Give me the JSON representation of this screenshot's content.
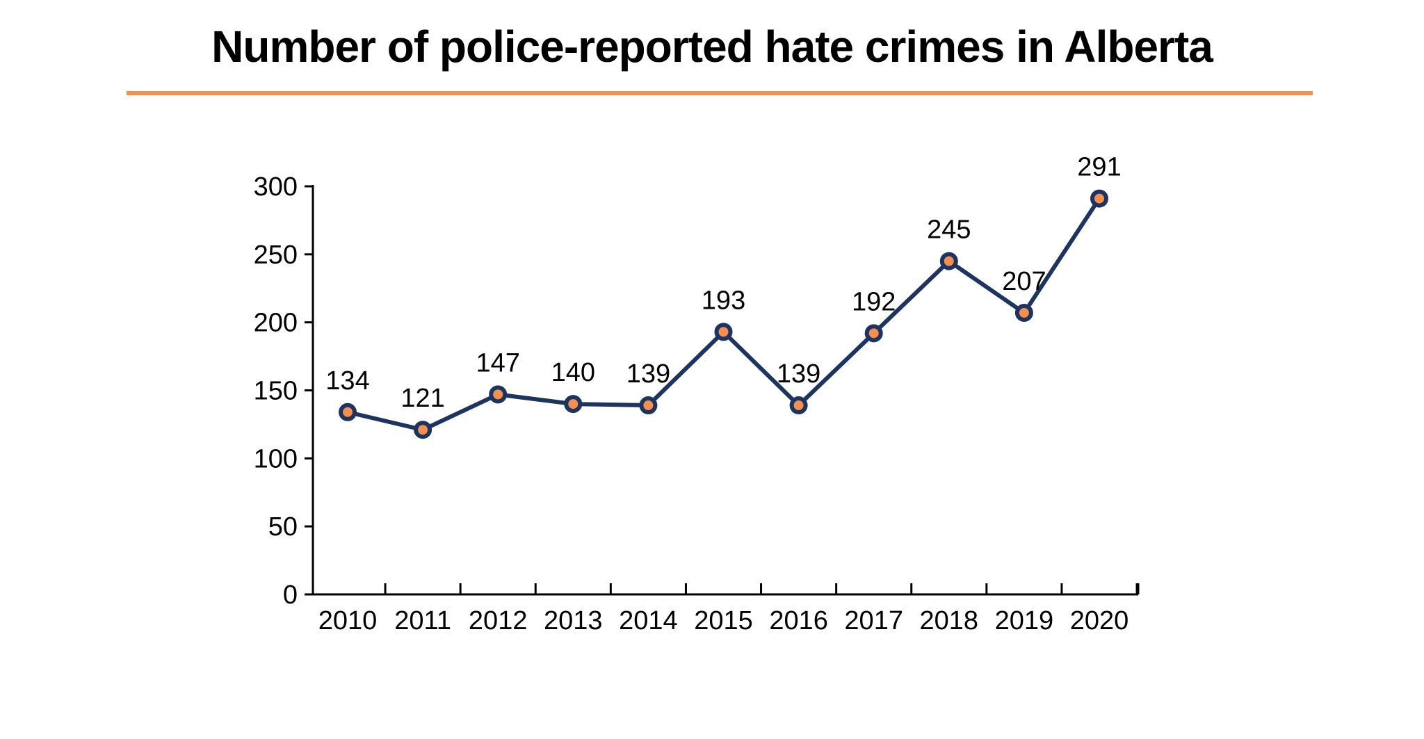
{
  "colors": {
    "accent": "#F3904F",
    "line": "#1D3461",
    "text": "#000000",
    "background": "#FFFFFF"
  },
  "chart_data": {
    "type": "line",
    "title": "Number of police-reported hate crimes in Alberta",
    "xlabel": "",
    "ylabel": "",
    "categories": [
      "2010",
      "2011",
      "2012",
      "2013",
      "2014",
      "2015",
      "2016",
      "2017",
      "2018",
      "2019",
      "2020"
    ],
    "series": [
      {
        "values": [
          134,
          121,
          147,
          140,
          139,
          193,
          139,
          192,
          245,
          207,
          291
        ]
      }
    ],
    "data_labels": [
      "134",
      "121",
      "147",
      "140",
      "139",
      "193",
      "139",
      "192",
      "245",
      "207",
      "291"
    ],
    "ylim": [
      0,
      300
    ],
    "yticks": [
      0,
      50,
      100,
      150,
      200,
      250,
      300
    ],
    "ytick_labels": [
      "0",
      "50",
      "100",
      "150",
      "200",
      "250",
      "300"
    ],
    "grid": false,
    "legend": "none",
    "marker_fill": "#F3904F",
    "marker_stroke": "#1D3461",
    "line_color": "#1D3461"
  }
}
